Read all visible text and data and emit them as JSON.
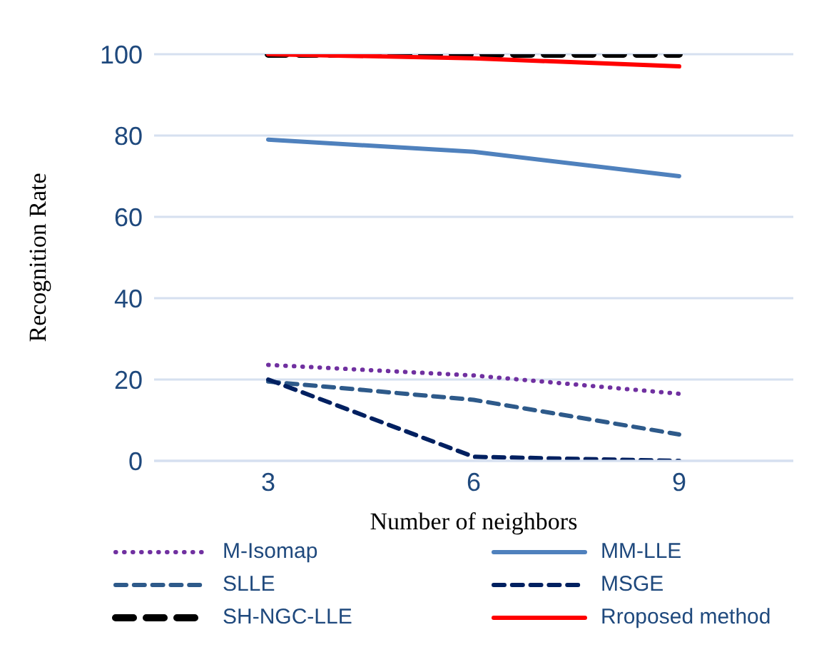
{
  "chart_data": {
    "type": "line",
    "xlabel": "Number of neighbors",
    "ylabel": "Recognition Rate",
    "categories": [
      "3",
      "6",
      "9"
    ],
    "ylim": [
      0,
      100
    ],
    "yticks": [
      0,
      20,
      40,
      60,
      80,
      100
    ],
    "grid": "y",
    "legend": "bottom",
    "marker": "none",
    "series": [
      {
        "name": "M-Isomap",
        "color": "#7030a0",
        "line_style": "dotted",
        "values": [
          23.6,
          21,
          16.5
        ]
      },
      {
        "name": "MM-LLE",
        "color": "#4f81bd",
        "line_style": "solid",
        "values": [
          79,
          76,
          70
        ]
      },
      {
        "name": "SLLE",
        "color": "#2e5a8a",
        "line_style": "dashed",
        "values": [
          19.5,
          15,
          6.5
        ]
      },
      {
        "name": "MSGE",
        "color": "#002060",
        "line_style": "dashed",
        "values": [
          20,
          1,
          0
        ]
      },
      {
        "name": "SH-NGC-LLE",
        "color": "#000000",
        "line_style": "dashed",
        "values": [
          100,
          100,
          100
        ]
      },
      {
        "name": "Rroposed method",
        "color": "#ff0000",
        "line_style": "solid",
        "values": [
          100,
          99,
          97
        ]
      }
    ]
  }
}
